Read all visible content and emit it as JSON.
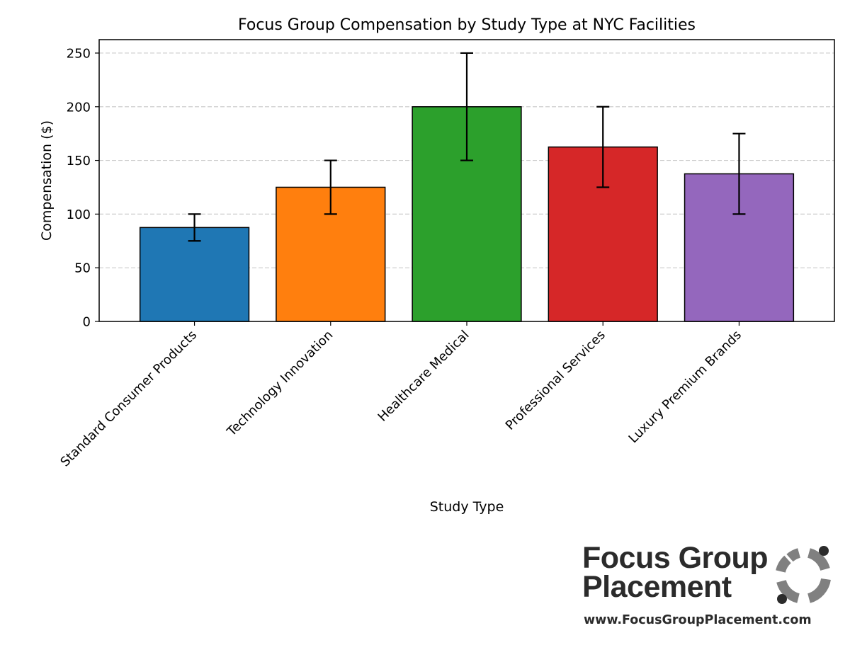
{
  "chart_data": {
    "type": "bar",
    "title": "Focus Group Compensation by Study Type at NYC Facilities",
    "xlabel": "Study Type",
    "ylabel": "Compensation ($)",
    "categories": [
      "Standard Consumer Products",
      "Technology Innovation",
      "Healthcare Medical",
      "Professional Services",
      "Luxury Premium Brands"
    ],
    "values": [
      87.5,
      125,
      200,
      162.5,
      137.5
    ],
    "error_low": [
      75,
      100,
      150,
      125,
      100
    ],
    "error_high": [
      100,
      150,
      250,
      200,
      175
    ],
    "colors": [
      "#1f77b4",
      "#ff7f0e",
      "#2ca02c",
      "#d62728",
      "#9467bd"
    ],
    "ylim": [
      0,
      262.5
    ],
    "yticks": [
      0,
      50,
      100,
      150,
      200,
      250
    ],
    "grid": "y-dashed",
    "legend": "none"
  },
  "logo": {
    "line1": "Focus Group",
    "line2": "Placement",
    "url": "www.FocusGroupPlacement.com",
    "text_color": "#2b2b2b",
    "mark_color": "#808080"
  }
}
